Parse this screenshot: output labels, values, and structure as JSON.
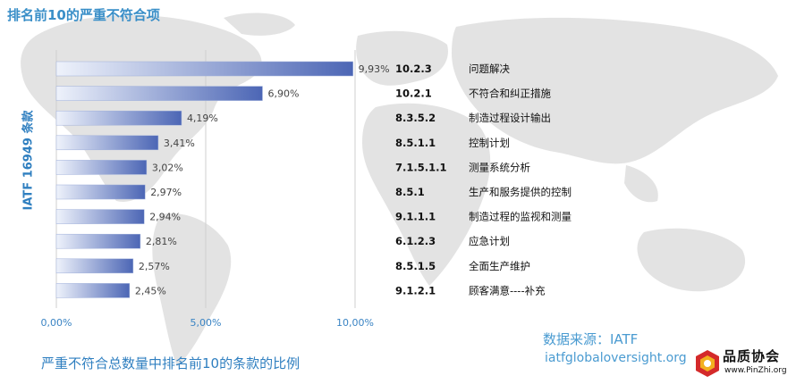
{
  "chart_data": {
    "type": "bar",
    "orientation": "horizontal",
    "title": "排名前10的严重不符合项",
    "ylabel": "IATF 16949 条款",
    "xlim": [
      0,
      10
    ],
    "xticks": [
      "0,00%",
      "5,00%",
      "10,00%"
    ],
    "grid": true,
    "categories": [
      {
        "clause": "10.2.3",
        "desc": "问题解决"
      },
      {
        "clause": "10.2.1",
        "desc": "不符合和纠正措施"
      },
      {
        "clause": "8.3.5.2",
        "desc": "制造过程设计输出"
      },
      {
        "clause": "8.5.1.1",
        "desc": "控制计划"
      },
      {
        "clause": "7.1.5.1.1",
        "desc": "测量系统分析"
      },
      {
        "clause": "8.5.1",
        "desc": "生产和服务提供的控制"
      },
      {
        "clause": "9.1.1.1",
        "desc": "制造过程的监视和测量"
      },
      {
        "clause": "6.1.2.3",
        "desc": "应急计划"
      },
      {
        "clause": "8.5.1.5",
        "desc": "全面生产维护"
      },
      {
        "clause": "9.1.2.1",
        "desc": "顾客满意----补充"
      }
    ],
    "values": [
      9.93,
      6.9,
      4.19,
      3.41,
      3.02,
      2.97,
      2.94,
      2.81,
      2.57,
      2.45
    ],
    "value_labels": [
      "9,93%",
      "6,90%",
      "4,19%",
      "3,41%",
      "3,02%",
      "2,97%",
      "2,94%",
      "2,81%",
      "2,57%",
      "2,45%"
    ],
    "bar_color_light": "#eef2fb",
    "bar_color_dark": "#4c66b5"
  },
  "footer": {
    "subtitle": "严重不符合总数量中排名前10的条款的比例",
    "source_label": "数据来源：IATF",
    "source_url": "iatfglobaloversight.org"
  },
  "logo": {
    "name": "品质协会",
    "url": "www.PinZhi.org",
    "icon": "quality-association-logo-icon"
  }
}
